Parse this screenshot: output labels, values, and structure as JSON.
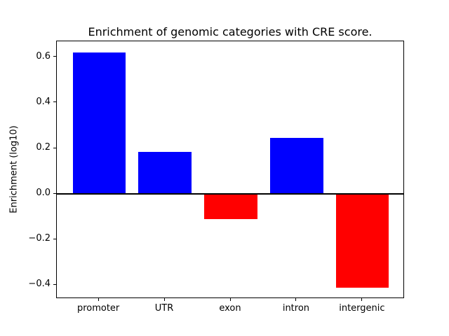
{
  "figure": {
    "background_color": "#ffffff",
    "text_color": "#000000"
  },
  "chart_data": {
    "type": "bar",
    "title": "Enrichment of genomic categories with CRE score.",
    "xlabel": "",
    "ylabel": "Enrichment (log10)",
    "categories": [
      "promoter",
      "UTR",
      "exon",
      "intron",
      "intergenic"
    ],
    "values": [
      0.62,
      0.185,
      -0.11,
      0.245,
      -0.41
    ],
    "bar_colors": [
      "#0000ff",
      "#0000ff",
      "#ff0000",
      "#0000ff",
      "#ff0000"
    ],
    "positive_color": "#0000ff",
    "negative_color": "#ff0000",
    "ylim": [
      -0.46,
      0.67
    ],
    "xlim": [
      -0.64,
      4.64
    ],
    "yticks": [
      0.6,
      0.4,
      0.2,
      0.0,
      -0.2,
      -0.4
    ],
    "ytick_labels": [
      "0.6",
      "0.4",
      "0.2",
      "0.0",
      "−0.2",
      "−0.4"
    ],
    "bar_width_fraction": 0.8,
    "grid": false,
    "legend": null,
    "zero_line": true,
    "frame": "box"
  }
}
